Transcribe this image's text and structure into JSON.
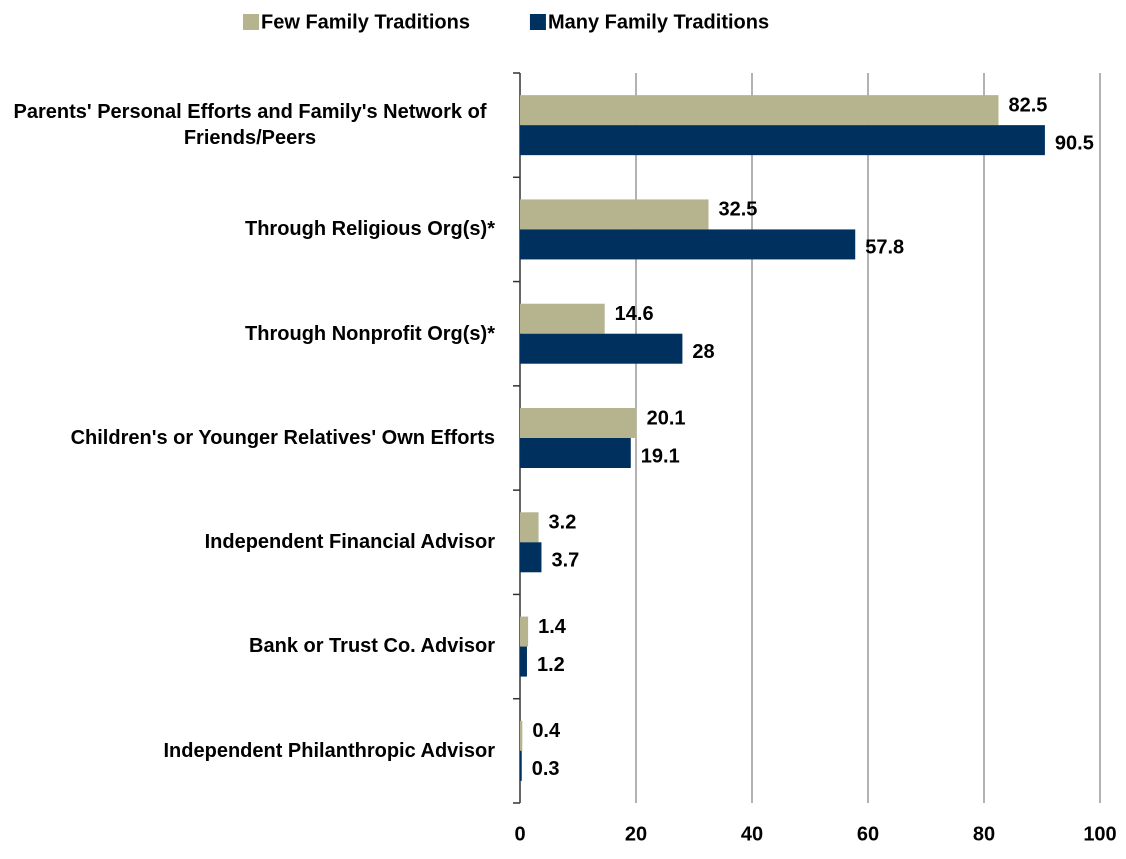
{
  "chart_data": {
    "type": "barh",
    "categories": [
      "Parents' Personal Efforts and Family's Network of Friends/Peers",
      "Through Religious Org(s)*",
      "Through Nonprofit Org(s)*",
      "Children's or Younger Relatives' Own Efforts",
      "Independent Financial Advisor",
      "Bank or Trust Co. Advisor",
      "Independent Philanthropic Advisor"
    ],
    "series": [
      {
        "name": "Few Family Traditions",
        "color": "#b5b48f",
        "values": [
          82.5,
          32.5,
          14.6,
          20.1,
          3.2,
          1.4,
          0.4
        ]
      },
      {
        "name": "Many Family Traditions",
        "color": "#00305e",
        "values": [
          90.5,
          57.8,
          28,
          19.1,
          3.7,
          1.2,
          0.3
        ]
      }
    ],
    "xlim": [
      0,
      100
    ],
    "xticks": [
      0,
      20,
      40,
      60,
      80,
      100
    ],
    "grid": true,
    "legend": "top"
  }
}
